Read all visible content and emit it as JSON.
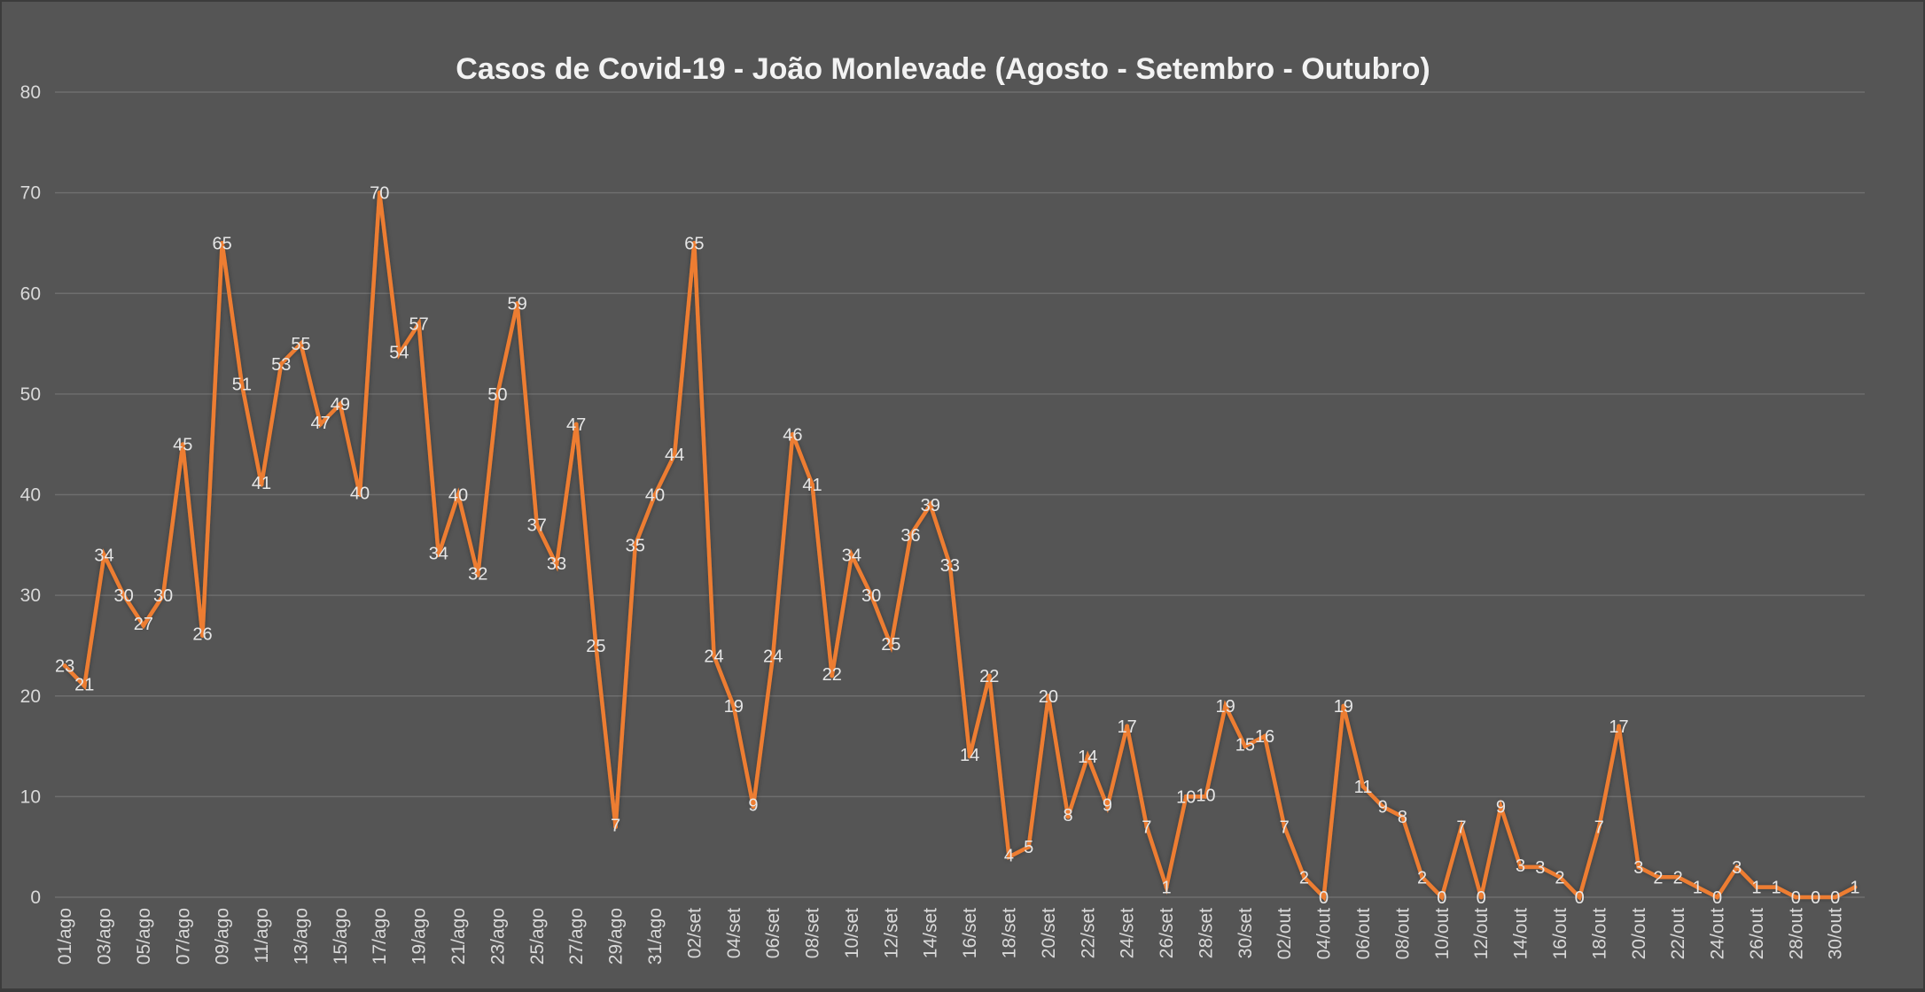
{
  "chart_data": {
    "type": "line",
    "title": "Casos de Covid-19 - João Monlevade (Agosto - Setembro - Outubro)",
    "xlabel": "",
    "ylabel": "",
    "ylim": [
      0,
      80
    ],
    "yticks": [
      0,
      10,
      20,
      30,
      40,
      50,
      60,
      70,
      80
    ],
    "grid": true,
    "legend": "none",
    "x": [
      "01/ago",
      "02/ago",
      "03/ago",
      "04/ago",
      "05/ago",
      "06/ago",
      "07/ago",
      "08/ago",
      "09/ago",
      "10/ago",
      "11/ago",
      "12/ago",
      "13/ago",
      "14/ago",
      "15/ago",
      "16/ago",
      "17/ago",
      "18/ago",
      "19/ago",
      "20/ago",
      "21/ago",
      "22/ago",
      "23/ago",
      "24/ago",
      "25/ago",
      "26/ago",
      "27/ago",
      "28/ago",
      "29/ago",
      "30/ago",
      "31/ago",
      "01/set",
      "02/set",
      "03/set",
      "04/set",
      "05/set",
      "06/set",
      "07/set",
      "08/set",
      "09/set",
      "10/set",
      "11/set",
      "12/set",
      "13/set",
      "14/set",
      "15/set",
      "16/set",
      "17/set",
      "18/set",
      "19/set",
      "20/set",
      "21/set",
      "22/set",
      "23/set",
      "24/set",
      "25/set",
      "26/set",
      "27/set",
      "28/set",
      "29/set",
      "30/set",
      "01/out",
      "02/out",
      "03/out",
      "04/out",
      "05/out",
      "06/out",
      "07/out",
      "08/out",
      "09/out",
      "10/out",
      "11/out",
      "12/out",
      "13/out",
      "14/out",
      "15/out",
      "16/out",
      "17/out",
      "18/out",
      "19/out",
      "20/out",
      "21/out",
      "22/out",
      "23/out",
      "24/out",
      "25/out",
      "26/out",
      "27/out",
      "28/out",
      "29/out",
      "30/out",
      "31/out"
    ],
    "xtick_labels": [
      "01/ago",
      "03/ago",
      "05/ago",
      "07/ago",
      "09/ago",
      "11/ago",
      "13/ago",
      "15/ago",
      "17/ago",
      "19/ago",
      "21/ago",
      "23/ago",
      "25/ago",
      "27/ago",
      "29/ago",
      "31/ago",
      "02/set",
      "04/set",
      "06/set",
      "08/set",
      "10/set",
      "12/set",
      "14/set",
      "16/set",
      "18/set",
      "20/set",
      "22/set",
      "24/set",
      "26/set",
      "28/set",
      "30/set",
      "02/out",
      "04/out",
      "06/out",
      "08/out",
      "10/out",
      "12/out",
      "14/out",
      "16/out",
      "18/out",
      "20/out",
      "22/out",
      "24/out",
      "26/out",
      "28/out",
      "30/out"
    ],
    "series": [
      {
        "color": "#ed7d31",
        "values": [
          23,
          21,
          34,
          30,
          27,
          30,
          45,
          26,
          65,
          51,
          41,
          53,
          55,
          47,
          49,
          40,
          70,
          54,
          57,
          34,
          40,
          32,
          50,
          59,
          37,
          33,
          47,
          25,
          7,
          35,
          40,
          44,
          65,
          24,
          19,
          9,
          24,
          46,
          41,
          22,
          34,
          30,
          25,
          36,
          39,
          33,
          14,
          22,
          4,
          5,
          20,
          8,
          14,
          9,
          17,
          7,
          1,
          10,
          10,
          19,
          15,
          16,
          7,
          2,
          0,
          19,
          11,
          9,
          8,
          2,
          0,
          7,
          0,
          9,
          3,
          3,
          2,
          0,
          7,
          17,
          3,
          2,
          2,
          1,
          0,
          3,
          1,
          1,
          0,
          0,
          0,
          1
        ]
      }
    ]
  }
}
